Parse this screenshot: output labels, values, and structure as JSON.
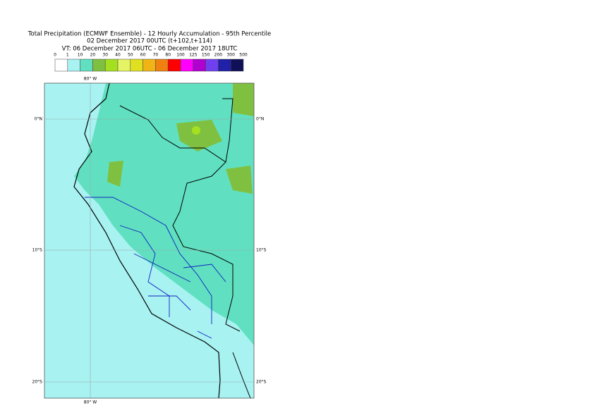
{
  "header": {
    "title_lines": [
      "Total Precipitation (ECMWF Ensemble) - 12 Hourly Accumulation - 95th Percentile",
      "02 December 2017 00UTC (t+102,t+114)",
      "VT: 06 December 2017 06UTC - 06 December 2017 18UTC"
    ]
  },
  "legend": {
    "labels": [
      "0",
      "1",
      "10",
      "20",
      "30",
      "40",
      "50",
      "60",
      "70",
      "80",
      "100",
      "125",
      "150",
      "200",
      "300",
      "500"
    ],
    "colors": [
      "#ffffff",
      "#a8f2f2",
      "#60e0c0",
      "#80c040",
      "#a4e020",
      "#e4f464",
      "#e0e020",
      "#f0b414",
      "#f08010",
      "#ff0000",
      "#ff00ff",
      "#b000d0",
      "#7040f0",
      "#2020a8",
      "#101058"
    ]
  },
  "map": {
    "top_label": "80° W",
    "bottom_label": "80° W",
    "left_labels": [
      "0°N",
      "10°S",
      "20°S"
    ],
    "right_labels": [
      "0°N",
      "10°S",
      "20°S"
    ]
  }
}
